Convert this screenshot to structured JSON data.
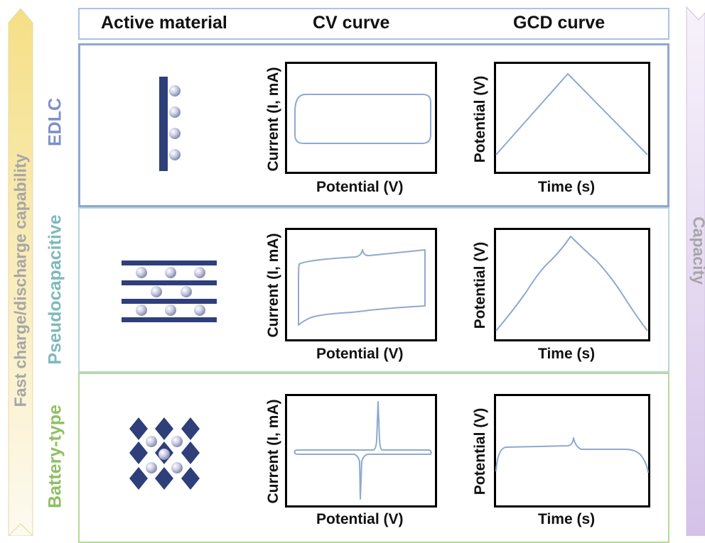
{
  "headers": {
    "active_material": "Active material",
    "cv_curve": "CV curve",
    "gcd_curve": "GCD curve"
  },
  "side_left": "Fast charge/discharge capability",
  "side_right": "Capacity",
  "rows": [
    {
      "label": "EDLC",
      "color": "#7d8fc9",
      "cv_ylabel": "Current (I, mA)",
      "cv_xlabel": "Potential (V)",
      "gcd_ylabel": "Potential (V)",
      "gcd_xlabel": "Time (s)"
    },
    {
      "label": "Pseudocapacitive",
      "color": "#7fb9bd",
      "cv_ylabel": "Current (I, mA)",
      "cv_xlabel": "Potential (V)",
      "gcd_ylabel": "Potential (V)",
      "gcd_xlabel": "Time (s)"
    },
    {
      "label": "Battery-type",
      "color": "#8fbf63",
      "cv_ylabel": "Current (I, mA)",
      "cv_xlabel": "Potential (V)",
      "gcd_ylabel": "Potential (V)",
      "gcd_xlabel": "Time (s)"
    }
  ],
  "colors": {
    "electrode": "#2e3f7a",
    "curve": "#8fa9cf",
    "header_border": "#a9c3e6",
    "left_arrow": "#f6e39a",
    "right_arrow": "#d9c8ea"
  }
}
